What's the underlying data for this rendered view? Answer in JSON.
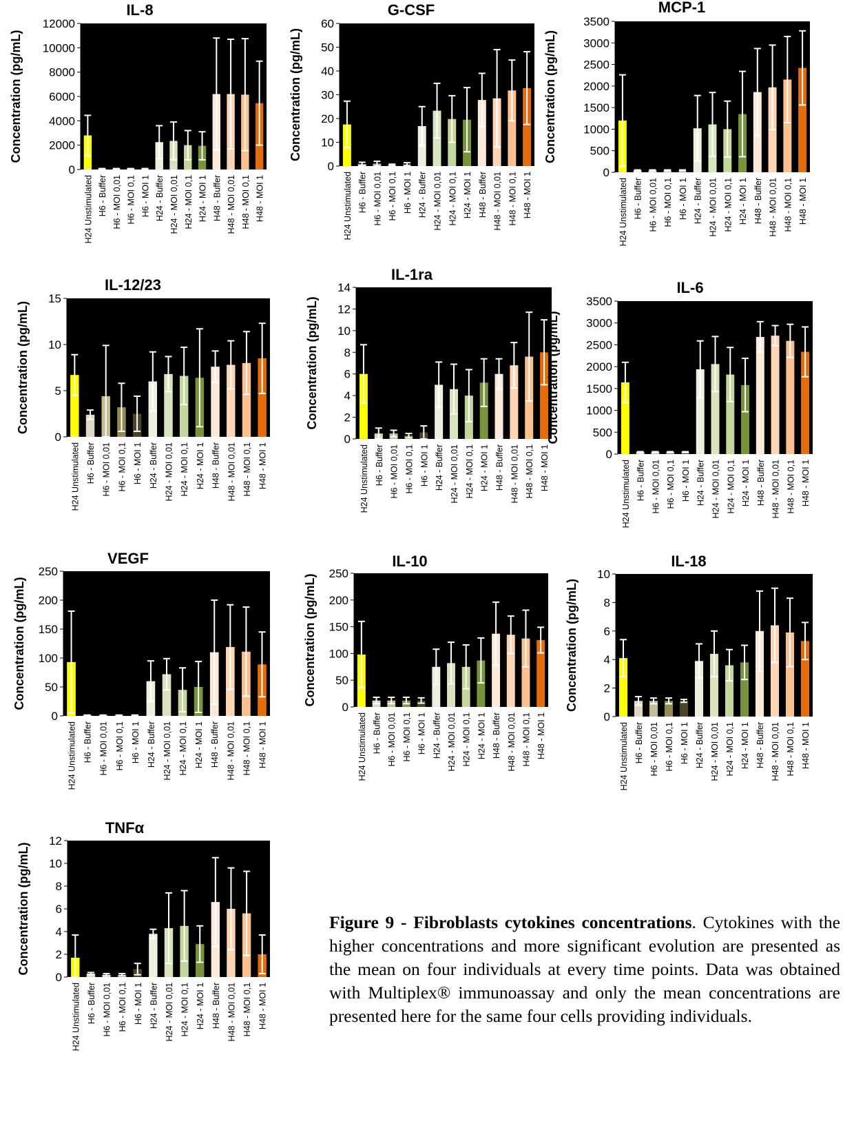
{
  "panel_layout_note": "",
  "categories": [
    "H24 Unstimulated",
    "H6 - Buffer",
    "H6 - MOI 0,01",
    "H6 - MOI 0,1",
    "H6 - MOI 1",
    "H24 - Buffer",
    "H24 - MOI 0,01",
    "H24 - MOI 0,1",
    "H24 - MOI 1",
    "H48 - Buffer",
    "H48 - MOI 0,01",
    "H48 - MOI 0,1",
    "H48 - MOI 1"
  ],
  "bar_colors": [
    "#ffff00",
    "#ddd9c4",
    "#c4bd97",
    "#948a54",
    "#4a452a",
    "#ebf1de",
    "#d7e4bd",
    "#c3d69b",
    "#77933c",
    "#fde9d9",
    "#fcd5b5",
    "#fac090",
    "#e46c0a"
  ],
  "ylabel": "Concentration (pg/mL)",
  "caption": {
    "bold": "Figure 9 - Fibroblasts cytokines concentrations",
    "text": ". Cytokines with the higher concentrations and more significant evolution are presented as the mean on four individuals at every time points. Data was obtained with Multiplex® immunoassay and only the mean concentrations are presented here for the same four cells providing individuals."
  },
  "chart_data": [
    {
      "type": "bar",
      "title": "IL-8",
      "ylabel": "Concentration (pg/mL)",
      "ylim": [
        0,
        12000
      ],
      "yticks": [
        0,
        2000,
        4000,
        6000,
        8000,
        10000,
        12000
      ],
      "values": [
        2800,
        60,
        60,
        60,
        60,
        2250,
        2350,
        2000,
        1950,
        6200,
        6200,
        6150,
        5450
      ],
      "errors": [
        1650,
        20,
        20,
        20,
        20,
        1350,
        1550,
        1200,
        1150,
        4600,
        4500,
        4600,
        3450
      ]
    },
    {
      "type": "bar",
      "title": "G-CSF",
      "ylabel": "Concentration (pg/mL)",
      "ylim": [
        0,
        60
      ],
      "yticks": [
        0,
        10,
        20,
        30,
        40,
        50,
        60
      ],
      "values": [
        17.5,
        0.8,
        1.0,
        0.5,
        0.8,
        16.8,
        23.3,
        19.8,
        19.5,
        27.8,
        28.5,
        31.8,
        32.8
      ],
      "errors": [
        9.8,
        0.8,
        1.0,
        0.3,
        0.6,
        8.2,
        11.5,
        9.8,
        13.5,
        11.2,
        20.5,
        12.8,
        15.3
      ]
    },
    {
      "type": "bar",
      "title": "MCP-1",
      "ylabel": "Concentration (pg/mL)",
      "ylim": [
        0,
        3500
      ],
      "yticks": [
        0,
        500,
        1000,
        1500,
        2000,
        2500,
        3000,
        3500
      ],
      "values": [
        1200,
        40,
        40,
        40,
        40,
        1020,
        1110,
        1000,
        1350,
        1860,
        1970,
        2150,
        2420
      ],
      "errors": [
        1060,
        15,
        15,
        15,
        15,
        760,
        740,
        650,
        990,
        1010,
        980,
        1000,
        860
      ]
    },
    {
      "type": "bar",
      "title": "IL-12/23",
      "ylabel": "Concentration (pg/mL)",
      "ylim": [
        0,
        15
      ],
      "yticks": [
        0,
        5,
        10,
        15
      ],
      "values": [
        6.7,
        2.4,
        4.4,
        3.2,
        2.5,
        6.0,
        6.8,
        6.6,
        6.4,
        7.6,
        7.8,
        8.0,
        8.5
      ],
      "errors": [
        2.2,
        0.5,
        5.5,
        2.6,
        1.9,
        3.2,
        1.9,
        3.1,
        5.3,
        1.7,
        2.6,
        3.4,
        3.8
      ]
    },
    {
      "type": "bar",
      "title": "IL-1ra",
      "ylabel": "Concentration (pg/mL)",
      "ylim": [
        0,
        14
      ],
      "yticks": [
        0,
        2,
        4,
        6,
        8,
        10,
        12,
        14
      ],
      "values": [
        6.0,
        0.5,
        0.5,
        0.3,
        0.6,
        5.0,
        4.6,
        4.0,
        5.2,
        6.0,
        6.8,
        7.6,
        8.0
      ],
      "errors": [
        2.7,
        0.5,
        0.3,
        0.2,
        0.6,
        2.1,
        2.3,
        2.4,
        2.2,
        1.4,
        2.1,
        4.1,
        3.0
      ]
    },
    {
      "type": "bar",
      "title": "IL-6",
      "ylabel": "Concentration (pg/mL)",
      "ylim": [
        0,
        3500
      ],
      "yticks": [
        0,
        500,
        1000,
        1500,
        2000,
        2500,
        3000,
        3500
      ],
      "values": [
        1640,
        45,
        45,
        45,
        45,
        1940,
        2060,
        1820,
        1580,
        2680,
        2710,
        2590,
        2340
      ],
      "errors": [
        460,
        10,
        10,
        10,
        10,
        650,
        630,
        620,
        610,
        350,
        230,
        380,
        570
      ]
    },
    {
      "type": "bar",
      "title": "VEGF",
      "ylabel": "Concentration (pg/mL)",
      "ylim": [
        0,
        250
      ],
      "yticks": [
        0,
        50,
        100,
        150,
        200,
        250
      ],
      "values": [
        93,
        1,
        1,
        1,
        1,
        60,
        72,
        45,
        50,
        110,
        119,
        111,
        89
      ],
      "errors": [
        88,
        0.5,
        0.5,
        0.5,
        0.5,
        35,
        27,
        38,
        44,
        90,
        73,
        77,
        56
      ]
    },
    {
      "type": "bar",
      "title": "IL-10",
      "ylabel": "Concentration (pg/mL)",
      "ylim": [
        0,
        250
      ],
      "yticks": [
        0,
        50,
        100,
        150,
        200,
        250
      ],
      "values": [
        98,
        12,
        12,
        12,
        12,
        75,
        82,
        75,
        87,
        137,
        135,
        128,
        125
      ],
      "errors": [
        62,
        6,
        6,
        6,
        5,
        33,
        39,
        41,
        42,
        59,
        35,
        53,
        24
      ]
    },
    {
      "type": "bar",
      "title": "IL-18",
      "ylabel": "Concentration (pg/mL)",
      "ylim": [
        0,
        10
      ],
      "yticks": [
        0,
        2,
        4,
        6,
        8,
        10
      ],
      "values": [
        4.1,
        1.1,
        1.1,
        1.1,
        1.1,
        3.9,
        4.4,
        3.6,
        3.8,
        6.0,
        6.4,
        5.9,
        5.3
      ],
      "errors": [
        1.3,
        0.3,
        0.2,
        0.2,
        0.1,
        1.2,
        1.6,
        1.1,
        1.2,
        2.8,
        2.6,
        2.4,
        1.3
      ]
    },
    {
      "type": "bar",
      "title": "TNFα",
      "ylabel": "Concentration (pg/mL)",
      "ylim": [
        0,
        12
      ],
      "yticks": [
        0,
        2,
        4,
        6,
        8,
        10,
        12
      ],
      "values": [
        1.7,
        0.3,
        0.2,
        0.2,
        0.7,
        3.8,
        4.3,
        4.5,
        2.9,
        6.6,
        6.0,
        5.6,
        2.0
      ],
      "errors": [
        2.0,
        0.1,
        0.1,
        0.1,
        0.5,
        0.4,
        3.1,
        3.1,
        1.6,
        3.9,
        3.6,
        3.7,
        1.7
      ]
    }
  ]
}
